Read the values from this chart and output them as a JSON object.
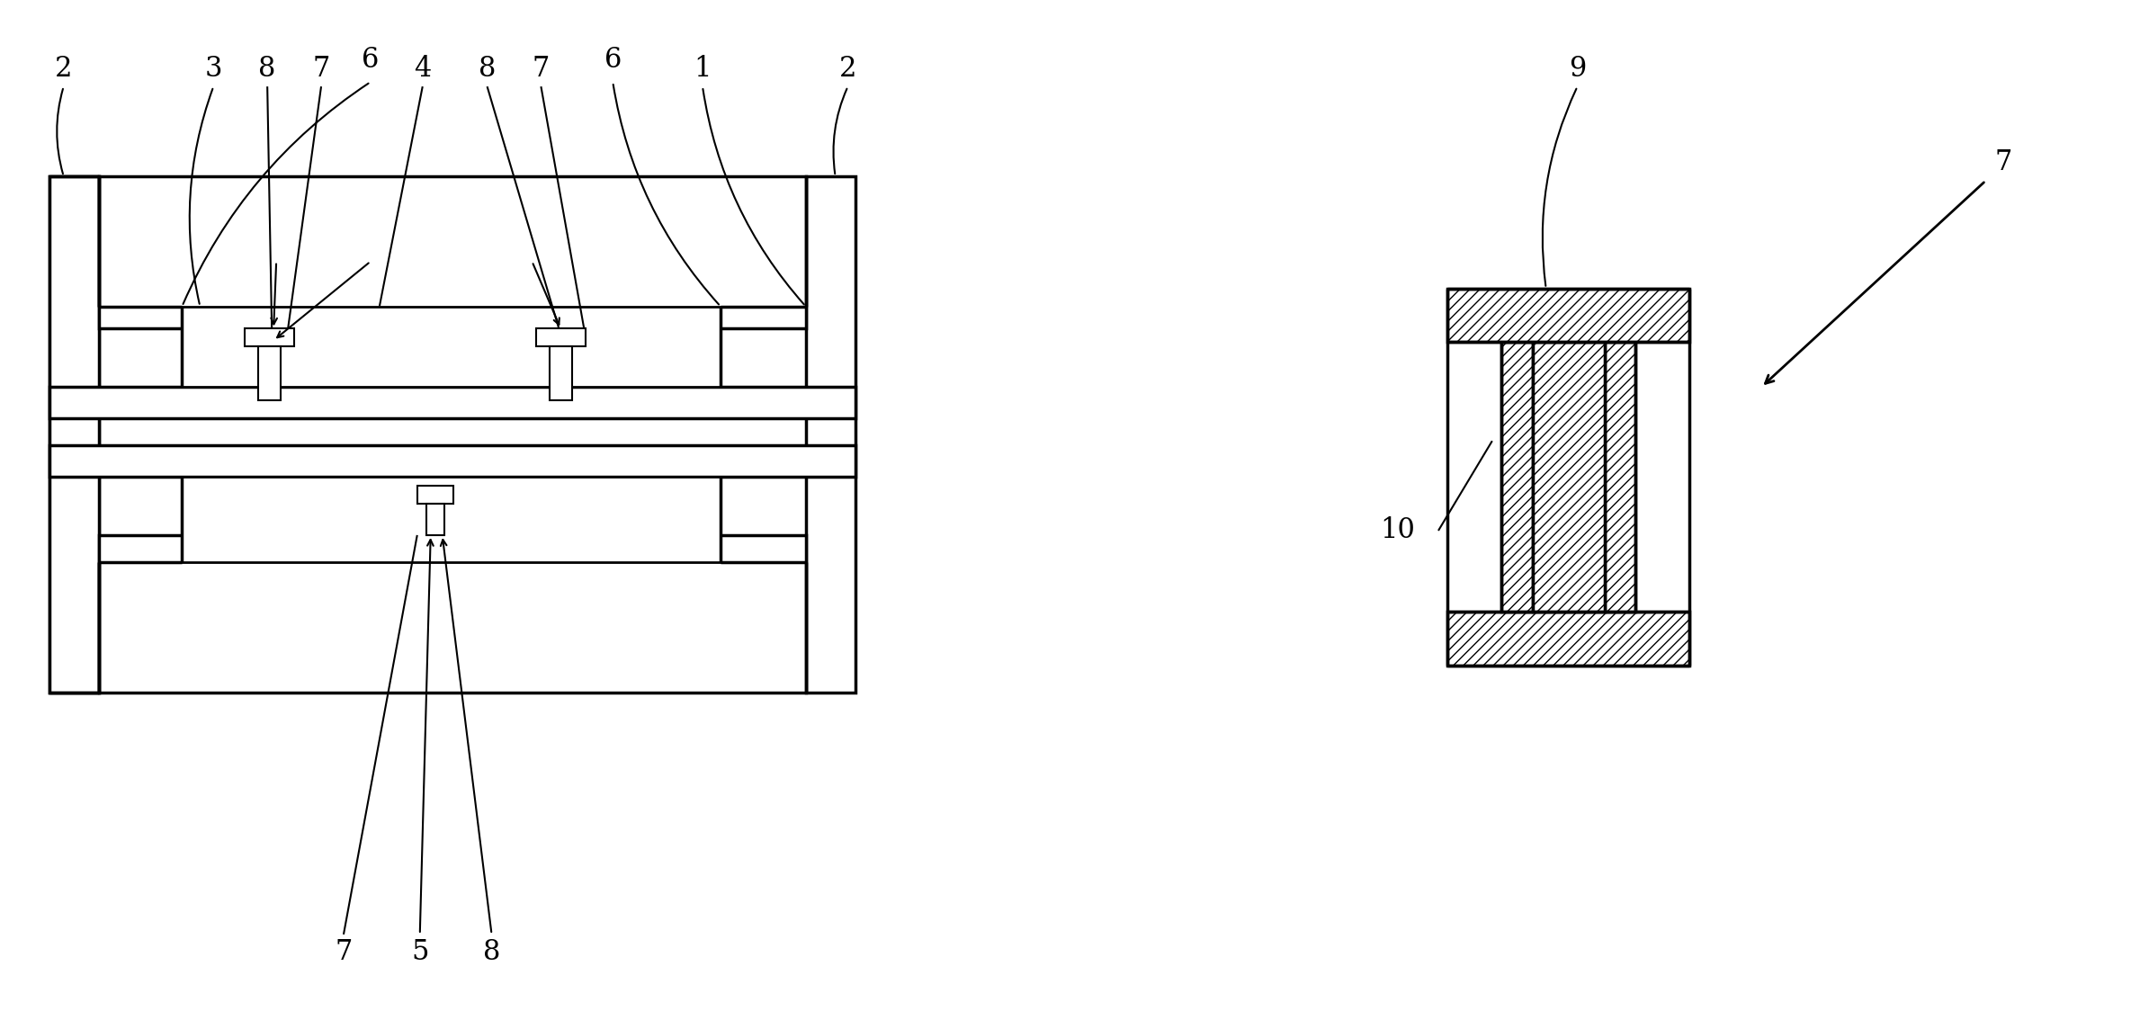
{
  "bg_color": "#ffffff",
  "line_color": "#000000",
  "fig_width": 23.69,
  "fig_height": 11.34,
  "lw_main": 2.5,
  "lw_med": 2.0,
  "lw_thin": 1.5,
  "label_fontsize": 22
}
